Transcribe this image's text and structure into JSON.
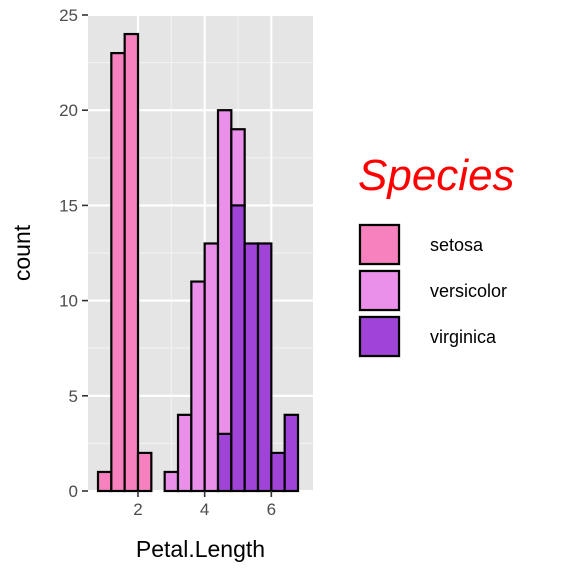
{
  "chart_data": {
    "type": "bar",
    "subtype": "stacked-histogram",
    "xlabel": "Petal.Length",
    "ylabel": "count",
    "xlim": [
      0.5,
      7.25
    ],
    "ylim": [
      0,
      25
    ],
    "x_ticks": [
      2,
      4,
      6
    ],
    "x_tick_labels": [
      "2",
      "4",
      "6"
    ],
    "y_ticks": [
      0,
      5,
      10,
      15,
      20,
      25
    ],
    "y_tick_labels": [
      "0",
      "5",
      "10",
      "15",
      "20",
      "25"
    ],
    "grid": true,
    "panel_background": "#e5e5e5",
    "bar_outline": "#000000",
    "bin_width": 0.4,
    "bin_centers": [
      1.0,
      1.4,
      1.8,
      2.2,
      2.6,
      3.0,
      3.4,
      3.8,
      4.2,
      4.6,
      5.0,
      5.4,
      5.8,
      6.2,
      6.6
    ],
    "series": [
      {
        "name": "setosa",
        "color": "#f781bf",
        "values": [
          1,
          23,
          24,
          2,
          0,
          0,
          0,
          0,
          0,
          0,
          0,
          0,
          0,
          0,
          0
        ]
      },
      {
        "name": "versicolor",
        "color": "#ea90ea",
        "values": [
          0,
          0,
          0,
          0,
          0,
          1,
          4,
          11,
          13,
          17,
          4,
          0,
          0,
          0,
          0
        ]
      },
      {
        "name": "virginica",
        "color": "#a044d8",
        "values": [
          0,
          0,
          0,
          0,
          0,
          0,
          0,
          0,
          0,
          3,
          15,
          13,
          13,
          2,
          4
        ]
      }
    ],
    "legend": {
      "title": "Species",
      "title_color": "#ff0000",
      "position": "right"
    }
  }
}
